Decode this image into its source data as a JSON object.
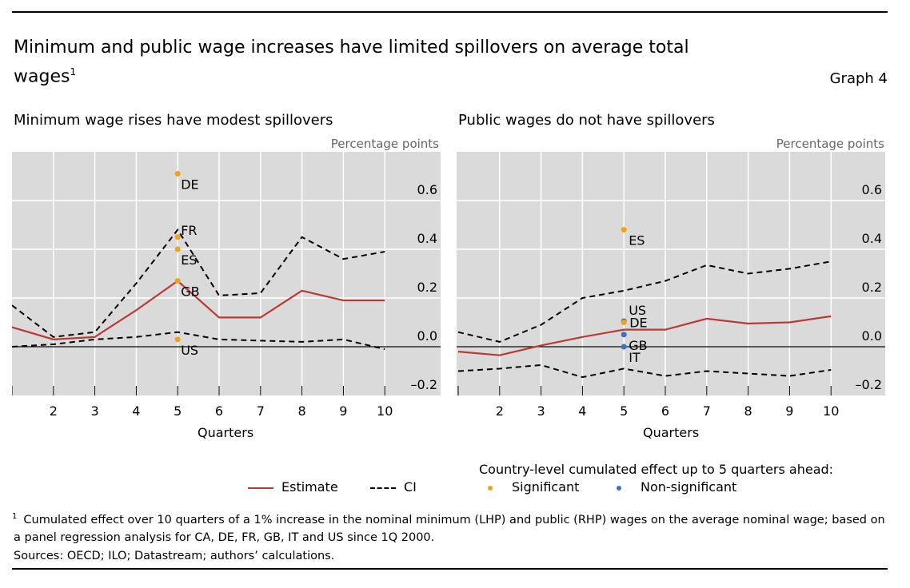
{
  "title": "Minimum and public wage increases have limited spillovers on average total wages",
  "title_sup": "1",
  "graph_label": "Graph 4",
  "legend": {
    "estimate": "Estimate",
    "ci": "CI",
    "country_title": "Country-level cumulated effect up to 5 quarters ahead:",
    "significant": "Significant",
    "non_significant": "Non-significant"
  },
  "colors": {
    "estimate": "#b83a35",
    "significant": "#f0a21e",
    "non_significant": "#3f72b8",
    "background": "#dadada"
  },
  "footnote": {
    "marker": "1",
    "text": "Cumulated effect over 10 quarters of a 1% increase in the nominal minimum (LHP) and public (RHP) wages on the average nominal wage; based on a panel regression analysis for CA, DE, FR, GB, IT and US since 1Q 2000."
  },
  "sources": "Sources: OECD; ILO; Datastream; authors’ calculations.",
  "chart_data": [
    {
      "type": "line",
      "title": "Minimum wage rises have modest spillovers",
      "ylabel": "Percentage points",
      "xlabel": "Quarters",
      "ylim": [
        -0.2,
        0.8
      ],
      "yticks": [
        "0.6",
        "0.4",
        "0.2",
        "0.0",
        "–0.2"
      ],
      "ytick_values": [
        0.6,
        0.4,
        0.2,
        0.0,
        -0.2
      ],
      "x": [
        1,
        2,
        3,
        4,
        5,
        6,
        7,
        8,
        9,
        10
      ],
      "xtick_labels": [
        "2",
        "3",
        "4",
        "5",
        "6",
        "7",
        "8",
        "9",
        "10"
      ],
      "series": [
        {
          "name": "Estimate",
          "values": [
            0.08,
            0.03,
            0.04,
            0.15,
            0.27,
            0.12,
            0.12,
            0.23,
            0.19,
            0.19
          ]
        },
        {
          "name": "CI upper",
          "values": [
            0.17,
            0.04,
            0.06,
            0.26,
            0.48,
            0.21,
            0.22,
            0.45,
            0.36,
            0.39
          ]
        },
        {
          "name": "CI lower",
          "values": [
            0.0,
            0.01,
            0.03,
            0.04,
            0.06,
            0.03,
            0.025,
            0.02,
            0.03,
            -0.01
          ]
        }
      ],
      "countries": [
        {
          "label": "DE",
          "x": 5,
          "value": 0.71,
          "significant": true
        },
        {
          "label": "FR",
          "x": 5,
          "value": 0.45,
          "significant": true
        },
        {
          "label": "ES",
          "x": 5,
          "value": 0.4,
          "significant": true
        },
        {
          "label": "GB",
          "x": 5,
          "value": 0.27,
          "significant": true
        },
        {
          "label": "US",
          "x": 5,
          "value": 0.03,
          "significant": true
        }
      ]
    },
    {
      "type": "line",
      "title": "Public wages do not have spillovers",
      "ylabel": "Percentage points",
      "xlabel": "Quarters",
      "ylim": [
        -0.2,
        0.8
      ],
      "yticks": [
        "0.6",
        "0.4",
        "0.2",
        "0.0",
        "–0.2"
      ],
      "ytick_values": [
        0.6,
        0.4,
        0.2,
        0.0,
        -0.2
      ],
      "x": [
        1,
        2,
        3,
        4,
        5,
        6,
        7,
        8,
        9,
        10
      ],
      "xtick_labels": [
        "2",
        "3",
        "4",
        "5",
        "6",
        "7",
        "8",
        "9",
        "10"
      ],
      "series": [
        {
          "name": "Estimate",
          "values": [
            -0.02,
            -0.035,
            0.005,
            0.04,
            0.07,
            0.07,
            0.115,
            0.095,
            0.1,
            0.125
          ]
        },
        {
          "name": "CI upper",
          "values": [
            0.06,
            0.02,
            0.09,
            0.2,
            0.23,
            0.27,
            0.335,
            0.3,
            0.32,
            0.35
          ]
        },
        {
          "name": "CI lower",
          "values": [
            -0.1,
            -0.09,
            -0.075,
            -0.125,
            -0.09,
            -0.12,
            -0.1,
            -0.11,
            -0.12,
            -0.095
          ]
        }
      ],
      "countries": [
        {
          "label": "ES",
          "x": 5,
          "value": 0.48,
          "significant": true
        },
        {
          "label": "US",
          "x": 5,
          "value": 0.105,
          "significant": false
        },
        {
          "label": "DE",
          "x": 5,
          "value": 0.1,
          "significant": true
        },
        {
          "label": "GB",
          "x": 5,
          "value": 0.05,
          "significant": false
        },
        {
          "label": "IT",
          "x": 5,
          "value": 0.0,
          "significant": false
        }
      ]
    }
  ]
}
